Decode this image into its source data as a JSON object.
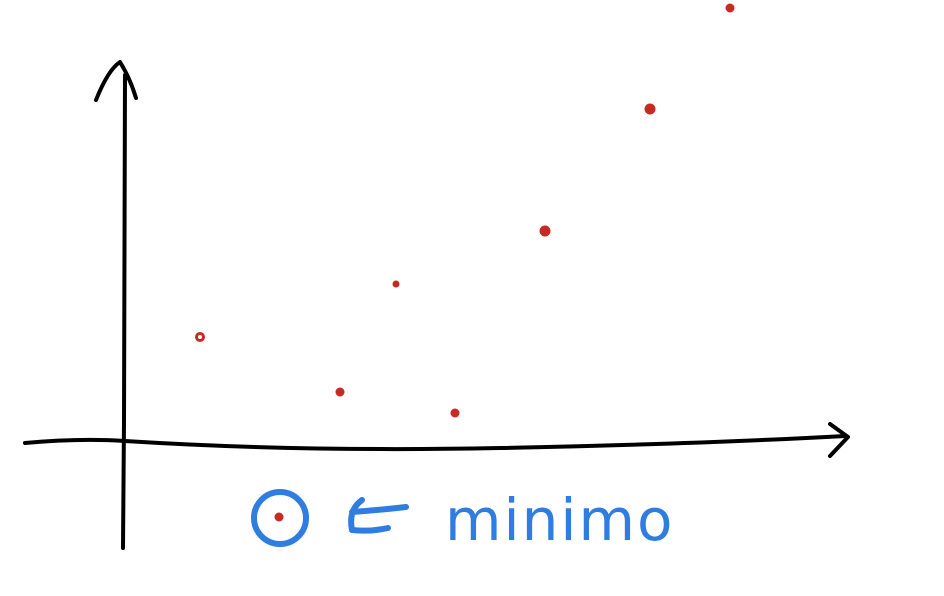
{
  "annotation": {
    "label": "minimo"
  }
}
